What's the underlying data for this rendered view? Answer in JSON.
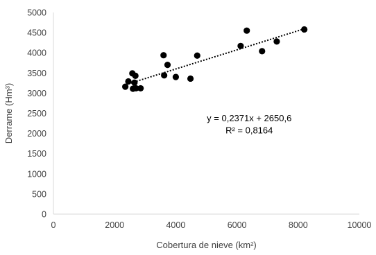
{
  "chart_data": {
    "type": "scatter",
    "title": "",
    "xlabel": "Cobertura de nieve (km²)",
    "ylabel": "Derrame (Hm³)",
    "xlim": [
      0,
      10000
    ],
    "ylim": [
      0,
      5000
    ],
    "xticks": [
      0,
      2000,
      4000,
      6000,
      8000,
      10000
    ],
    "xtick_labels": [
      "0",
      "2000",
      "4000",
      "6000",
      "8000",
      "10000"
    ],
    "yticks": [
      0,
      500,
      1000,
      1500,
      2000,
      2500,
      3000,
      3500,
      4000,
      4500,
      5000
    ],
    "ytick_labels": [
      "0",
      "500",
      "1000",
      "1500",
      "2000",
      "2500",
      "3000",
      "3500",
      "4000",
      "4500",
      "5000"
    ],
    "grid": false,
    "legend": "none",
    "marker_color": "#000000",
    "series": [
      {
        "points": [
          {
            "x": 2350,
            "y": 3160
          },
          {
            "x": 2450,
            "y": 3290
          },
          {
            "x": 2580,
            "y": 3490
          },
          {
            "x": 2600,
            "y": 3110
          },
          {
            "x": 2650,
            "y": 3260
          },
          {
            "x": 2680,
            "y": 3430
          },
          {
            "x": 2700,
            "y": 3120
          },
          {
            "x": 2850,
            "y": 3120
          },
          {
            "x": 3600,
            "y": 3940
          },
          {
            "x": 3620,
            "y": 3440
          },
          {
            "x": 3730,
            "y": 3700
          },
          {
            "x": 4000,
            "y": 3400
          },
          {
            "x": 4480,
            "y": 3360
          },
          {
            "x": 4700,
            "y": 3930
          },
          {
            "x": 6120,
            "y": 4170
          },
          {
            "x": 6320,
            "y": 4550
          },
          {
            "x": 6820,
            "y": 4040
          },
          {
            "x": 7300,
            "y": 4280
          },
          {
            "x": 8200,
            "y": 4580
          }
        ]
      }
    ],
    "trendline": {
      "slope": 0.2371,
      "intercept": 2650.6,
      "x_range": [
        2350,
        8200
      ],
      "style": "dotted"
    },
    "annotations": [
      {
        "text": "y = 0,2371x + 2650,6",
        "x": 6400,
        "y": 2300
      },
      {
        "text": "R² = 0,8164",
        "x": 6400,
        "y": 2000
      }
    ]
  }
}
